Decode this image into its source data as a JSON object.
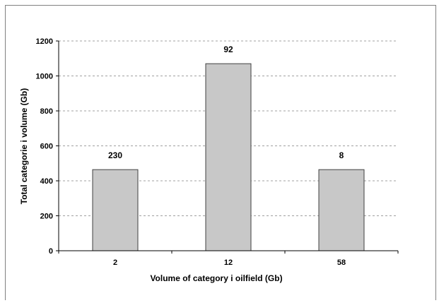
{
  "chart_data": {
    "type": "bar",
    "categories": [
      "2",
      "12",
      "58"
    ],
    "values": [
      464,
      1070,
      464
    ],
    "data_labels": [
      "230",
      "92",
      "8"
    ],
    "title": "",
    "xlabel": "Volume of category i oilfield (Gb)",
    "ylabel": "Total categorie i volume (Gb)",
    "ylim": [
      0,
      1200
    ],
    "yticks": [
      "0",
      "200",
      "400",
      "600",
      "800",
      "1000",
      "1200"
    ],
    "grid": true,
    "legend": "none",
    "colors": {
      "bar_fill": "#c8c8c8",
      "bar_stroke": "#404040",
      "grid": "#a0a0a0"
    }
  }
}
